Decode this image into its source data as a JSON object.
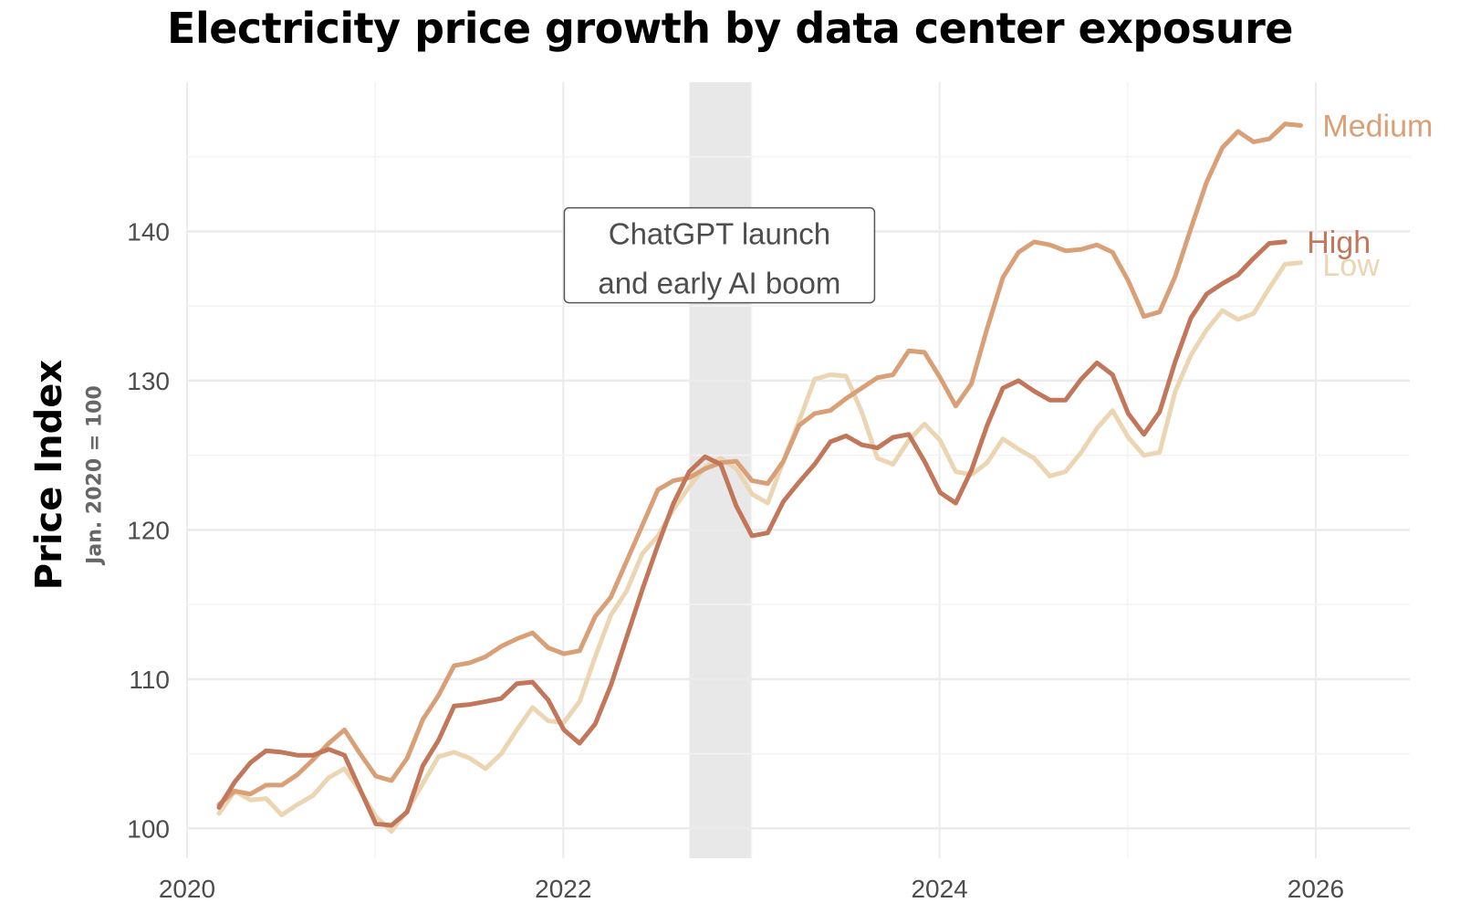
{
  "chart_data": {
    "type": "line",
    "title": "Electricity price growth by data center exposure",
    "ylabel": "Price Index",
    "ylabel_sub": "Jan. 2020 = 100",
    "xlabel": "",
    "xlim": [
      2020,
      2026.5
    ],
    "ylim": [
      98,
      150
    ],
    "x_ticks": [
      2020,
      2022,
      2024,
      2026
    ],
    "x_tick_labels": [
      "2020",
      "2022",
      "2024",
      "2026"
    ],
    "y_ticks": [
      100,
      110,
      120,
      130,
      140
    ],
    "y_tick_labels": [
      "100",
      "110",
      "120",
      "130",
      "140"
    ],
    "grid": true,
    "legend": "direct labels at line ends",
    "shaded_region": {
      "x_start": 2022.67,
      "x_end": 2023.0,
      "color": "#e8e8e8"
    },
    "annotation": {
      "lines": [
        "ChatGPT launch",
        "and early AI boom"
      ],
      "x": 2022.83,
      "y": 138.4
    },
    "x_start": 2020.17,
    "x_step": 0.08333,
    "series": [
      {
        "name": "Low",
        "color": "#ebd5b3",
        "values": [
          101.0,
          102.5,
          101.9,
          102.0,
          100.9,
          101.6,
          102.2,
          103.4,
          104.0,
          102.5,
          100.8,
          99.8,
          101.2,
          103.0,
          104.8,
          105.1,
          104.7,
          104.0,
          105.0,
          106.6,
          108.1,
          107.2,
          107.1,
          108.5,
          111.5,
          114.3,
          115.9,
          118.4,
          119.6,
          121.4,
          122.9,
          124.2,
          124.8,
          124.1,
          122.4,
          121.8,
          124.6,
          127.3,
          130.1,
          130.4,
          130.3,
          127.9,
          124.8,
          124.4,
          126.0,
          127.1,
          126.0,
          123.9,
          123.7,
          124.5,
          126.1,
          125.4,
          124.8,
          123.6,
          123.9,
          125.2,
          126.8,
          128.0,
          126.2,
          125.0,
          125.2,
          129.3,
          131.7,
          133.4,
          134.7,
          134.1,
          134.5,
          136.2,
          137.8,
          137.9
        ]
      },
      {
        "name": "Medium",
        "color": "#d9a077",
        "values": [
          101.6,
          102.5,
          102.3,
          102.9,
          102.9,
          103.6,
          104.6,
          105.7,
          106.6,
          105.0,
          103.5,
          103.2,
          104.7,
          107.3,
          108.9,
          110.9,
          111.1,
          111.5,
          112.2,
          112.7,
          113.1,
          112.1,
          111.7,
          111.9,
          114.2,
          115.5,
          117.9,
          120.3,
          122.7,
          123.3,
          123.5,
          124.1,
          124.5,
          124.6,
          123.3,
          123.1,
          124.6,
          127.0,
          127.8,
          128.0,
          128.8,
          129.5,
          130.2,
          130.4,
          132.0,
          131.9,
          130.2,
          128.3,
          129.8,
          133.5,
          136.9,
          138.6,
          139.3,
          139.1,
          138.7,
          138.8,
          139.1,
          138.6,
          136.7,
          134.3,
          134.6,
          137.0,
          140.2,
          143.3,
          145.6,
          146.7,
          146.0,
          146.2,
          147.2,
          147.1
        ]
      },
      {
        "name": "High",
        "color": "#c2765a",
        "values": [
          101.4,
          103.1,
          104.4,
          105.2,
          105.1,
          104.9,
          104.9,
          105.3,
          104.9,
          102.6,
          100.3,
          100.2,
          101.1,
          104.2,
          105.9,
          108.2,
          108.3,
          108.5,
          108.7,
          109.7,
          109.8,
          108.6,
          106.6,
          105.7,
          107.0,
          109.6,
          112.8,
          116.0,
          119.0,
          121.8,
          123.9,
          124.9,
          124.4,
          121.6,
          119.6,
          119.8,
          121.9,
          123.2,
          124.4,
          125.9,
          126.3,
          125.7,
          125.5,
          126.2,
          126.4,
          124.6,
          122.5,
          121.8,
          124.0,
          127.0,
          129.5,
          130.0,
          129.3,
          128.7,
          128.7,
          130.1,
          131.2,
          130.4,
          127.8,
          126.4,
          127.9,
          131.3,
          134.2,
          135.8,
          136.5,
          137.1,
          138.2,
          139.2,
          139.3
        ]
      }
    ]
  }
}
